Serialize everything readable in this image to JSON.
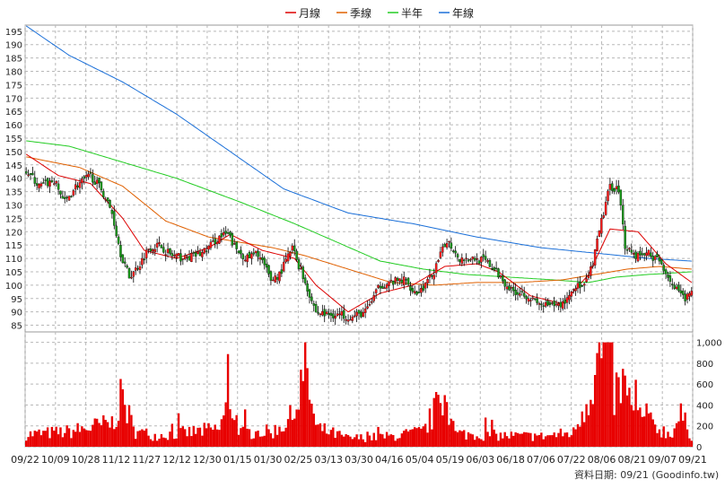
{
  "legend": [
    {
      "label": "月線",
      "color": "#dd0000"
    },
    {
      "label": "季線",
      "color": "#e06000"
    },
    {
      "label": "半年",
      "color": "#22cc22"
    },
    {
      "label": "年線",
      "color": "#1a6fd8"
    }
  ],
  "footer": "資料日期: 09/21  (Goodinfo.tw)",
  "chart_data": {
    "type": "candlestick+volume",
    "price_axis": {
      "ylim": [
        85,
        195
      ],
      "ticks": [
        85,
        90,
        95,
        100,
        105,
        110,
        115,
        120,
        125,
        130,
        135,
        140,
        145,
        150,
        155,
        160,
        165,
        170,
        175,
        180,
        185,
        190,
        195
      ]
    },
    "volume_axis": {
      "ylim": [
        0,
        1000
      ],
      "ticks": [
        "0",
        "200",
        "400",
        "600",
        "800",
        "1,000"
      ]
    },
    "x_labels": [
      "09/22",
      "10/09",
      "10/28",
      "11/12",
      "11/27",
      "12/12",
      "12/30",
      "01/15",
      "01/30",
      "02/25",
      "03/13",
      "03/30",
      "04/16",
      "05/04",
      "05/19",
      "06/03",
      "06/18",
      "07/06",
      "07/22",
      "08/06",
      "08/21",
      "09/07",
      "09/21"
    ],
    "grid": true,
    "price_close_keypoints": [
      [
        0,
        143
      ],
      [
        6,
        137
      ],
      [
        13,
        139
      ],
      [
        18,
        131
      ],
      [
        23,
        137
      ],
      [
        30,
        141
      ],
      [
        35,
        136
      ],
      [
        40,
        127
      ],
      [
        44,
        112
      ],
      [
        48,
        103
      ],
      [
        53,
        108
      ],
      [
        57,
        114
      ],
      [
        62,
        115
      ],
      [
        68,
        111
      ],
      [
        74,
        110
      ],
      [
        82,
        112
      ],
      [
        90,
        118
      ],
      [
        94,
        119
      ],
      [
        98,
        113
      ],
      [
        103,
        110
      ],
      [
        108,
        112
      ],
      [
        114,
        102
      ],
      [
        118,
        104
      ],
      [
        124,
        114
      ],
      [
        130,
        101
      ],
      [
        135,
        90
      ],
      [
        140,
        89
      ],
      [
        147,
        89
      ],
      [
        152,
        88
      ],
      [
        158,
        90
      ],
      [
        165,
        100
      ],
      [
        170,
        101
      ],
      [
        176,
        102
      ],
      [
        182,
        97
      ],
      [
        186,
        100
      ],
      [
        190,
        105
      ],
      [
        196,
        117
      ],
      [
        202,
        110
      ],
      [
        208,
        110
      ],
      [
        214,
        109
      ],
      [
        220,
        104
      ],
      [
        226,
        98
      ],
      [
        232,
        97
      ],
      [
        238,
        93
      ],
      [
        244,
        92
      ],
      [
        250,
        93
      ],
      [
        256,
        100
      ],
      [
        260,
        99
      ],
      [
        264,
        108
      ],
      [
        268,
        124
      ],
      [
        272,
        137
      ],
      [
        276,
        136
      ],
      [
        279,
        115
      ],
      [
        284,
        111
      ],
      [
        290,
        112
      ],
      [
        296,
        108
      ],
      [
        302,
        99
      ],
      [
        306,
        95
      ],
      [
        310,
        97
      ]
    ],
    "ma_month_keypoints": [
      [
        0,
        149
      ],
      [
        15,
        141
      ],
      [
        30,
        138
      ],
      [
        45,
        125
      ],
      [
        55,
        113
      ],
      [
        70,
        110
      ],
      [
        85,
        114
      ],
      [
        95,
        119
      ],
      [
        110,
        113
      ],
      [
        125,
        110
      ],
      [
        135,
        100
      ],
      [
        150,
        90
      ],
      [
        165,
        97
      ],
      [
        180,
        100
      ],
      [
        195,
        107
      ],
      [
        210,
        108
      ],
      [
        220,
        105
      ],
      [
        235,
        96
      ],
      [
        250,
        93
      ],
      [
        262,
        104
      ],
      [
        272,
        121
      ],
      [
        285,
        120
      ],
      [
        298,
        108
      ],
      [
        310,
        101
      ]
    ],
    "ma_quarter_keypoints": [
      [
        0,
        148
      ],
      [
        25,
        144
      ],
      [
        45,
        137
      ],
      [
        65,
        124
      ],
      [
        85,
        118
      ],
      [
        100,
        116
      ],
      [
        115,
        114
      ],
      [
        130,
        111
      ],
      [
        150,
        106
      ],
      [
        170,
        101
      ],
      [
        190,
        100
      ],
      [
        210,
        101
      ],
      [
        230,
        101
      ],
      [
        250,
        102
      ],
      [
        265,
        104
      ],
      [
        280,
        106
      ],
      [
        295,
        107
      ],
      [
        310,
        106
      ]
    ],
    "ma_half_keypoints": [
      [
        0,
        154
      ],
      [
        20,
        152
      ],
      [
        45,
        146
      ],
      [
        70,
        140
      ],
      [
        100,
        131
      ],
      [
        125,
        123
      ],
      [
        145,
        116
      ],
      [
        165,
        109
      ],
      [
        185,
        106
      ],
      [
        205,
        104
      ],
      [
        225,
        103
      ],
      [
        245,
        102
      ],
      [
        262,
        101
      ],
      [
        275,
        103
      ],
      [
        290,
        104
      ],
      [
        310,
        105
      ]
    ],
    "ma_year_keypoints": [
      [
        0,
        197
      ],
      [
        20,
        186
      ],
      [
        45,
        176
      ],
      [
        70,
        164
      ],
      [
        95,
        150
      ],
      [
        120,
        136
      ],
      [
        150,
        127
      ],
      [
        180,
        123
      ],
      [
        210,
        118
      ],
      [
        240,
        114
      ],
      [
        265,
        112
      ],
      [
        290,
        110
      ],
      [
        310,
        109
      ]
    ],
    "volume_keypoints": [
      [
        0,
        130
      ],
      [
        20,
        160
      ],
      [
        40,
        250
      ],
      [
        45,
        540
      ],
      [
        50,
        170
      ],
      [
        60,
        120
      ],
      [
        75,
        150
      ],
      [
        90,
        190
      ],
      [
        95,
        500
      ],
      [
        100,
        150
      ],
      [
        115,
        160
      ],
      [
        125,
        330
      ],
      [
        130,
        850
      ],
      [
        135,
        200
      ],
      [
        150,
        90
      ],
      [
        170,
        110
      ],
      [
        185,
        160
      ],
      [
        195,
        560
      ],
      [
        200,
        140
      ],
      [
        220,
        120
      ],
      [
        240,
        110
      ],
      [
        255,
        150
      ],
      [
        262,
        560
      ],
      [
        266,
        900
      ],
      [
        270,
        1000
      ],
      [
        274,
        560
      ],
      [
        278,
        650
      ],
      [
        282,
        360
      ],
      [
        290,
        260
      ],
      [
        300,
        130
      ],
      [
        305,
        330
      ],
      [
        310,
        120
      ]
    ]
  }
}
